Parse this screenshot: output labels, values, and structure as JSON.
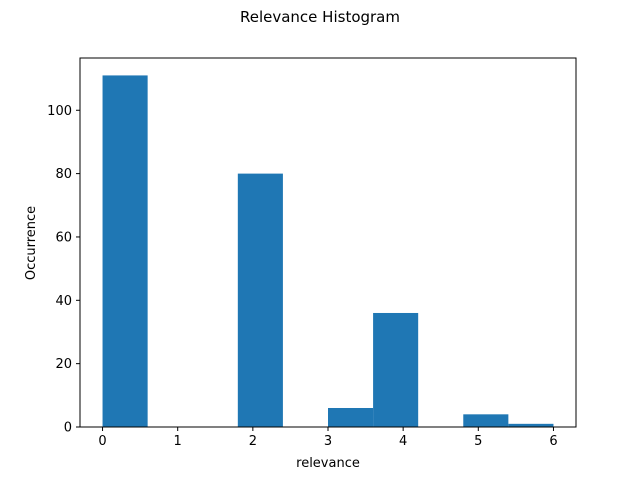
{
  "chart_data": {
    "type": "bar",
    "title": "Relevance Histogram",
    "xlabel": "relevance",
    "ylabel": "Occurrence",
    "xlim": [
      -0.3,
      6.3
    ],
    "ylim": [
      0,
      116.5
    ],
    "xticks": [
      0,
      1,
      2,
      3,
      4,
      5,
      6
    ],
    "yticks": [
      0,
      20,
      40,
      60,
      80,
      100
    ],
    "bin_edges": [
      0,
      0.6,
      1.2,
      1.8,
      2.4,
      3.0,
      3.6,
      4.2,
      4.8,
      5.4,
      6.0
    ],
    "values": [
      111,
      0,
      0,
      80,
      0,
      6,
      36,
      0,
      4,
      1
    ],
    "bar_color": "#1f77b4",
    "grid": false
  }
}
